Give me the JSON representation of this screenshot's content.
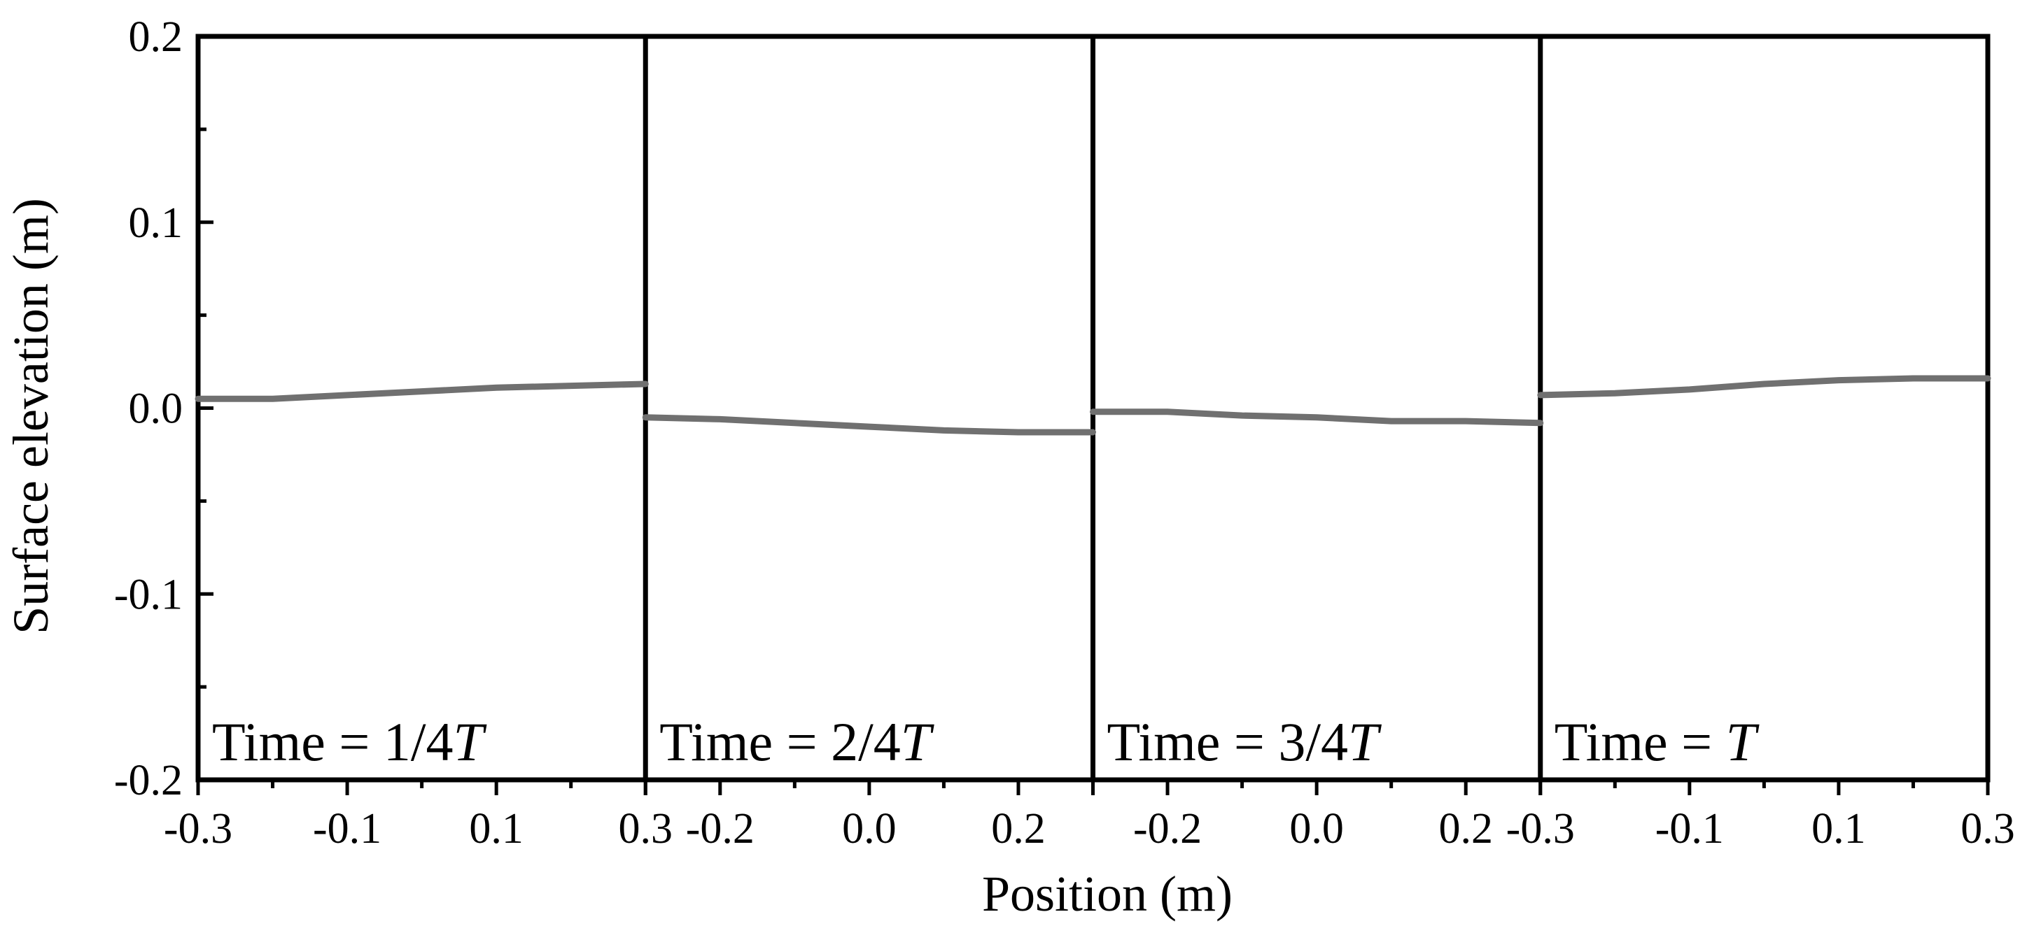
{
  "chart_data": {
    "type": "line",
    "layout": "four side-by-side panels sharing the y axis",
    "xlabel": "Position (m)",
    "ylabel": "Surface elevation (m)",
    "ylim": [
      -0.2,
      0.2
    ],
    "yticks": [
      "-0.2",
      "-0.1",
      "0.0",
      "0.1",
      "0.2"
    ],
    "grid": false,
    "line_color": "#707070",
    "axis_color": "#000000",
    "panels": [
      {
        "label_prefix": "Time = ",
        "label_value": "1/4",
        "label_italic": "T",
        "xlim": [
          -0.3,
          0.3
        ],
        "xticks": [
          "-0.3",
          "-0.1",
          "0.1",
          "0.3"
        ],
        "x": [
          -0.3,
          -0.2,
          -0.1,
          0.0,
          0.1,
          0.2,
          0.3
        ],
        "y": [
          0.005,
          0.005,
          0.007,
          0.009,
          0.011,
          0.012,
          0.013
        ]
      },
      {
        "label_prefix": "Time = ",
        "label_value": "2/4",
        "label_italic": "T",
        "xlim": [
          -0.3,
          0.3
        ],
        "xticks": [
          "-0.2",
          "0.0",
          "0.2"
        ],
        "x": [
          -0.3,
          -0.2,
          -0.1,
          0.0,
          0.1,
          0.2,
          0.3
        ],
        "y": [
          -0.005,
          -0.006,
          -0.008,
          -0.01,
          -0.012,
          -0.013,
          -0.013
        ]
      },
      {
        "label_prefix": "Time = ",
        "label_value": "3/4",
        "label_italic": "T",
        "xlim": [
          -0.3,
          0.3
        ],
        "xticks": [
          "-0.2",
          "0.0",
          "0.2"
        ],
        "x": [
          -0.3,
          -0.2,
          -0.1,
          0.0,
          0.1,
          0.2,
          0.3
        ],
        "y": [
          -0.002,
          -0.002,
          -0.004,
          -0.005,
          -0.007,
          -0.007,
          -0.008
        ]
      },
      {
        "label_prefix": "Time = ",
        "label_value": "",
        "label_italic": "T",
        "xlim": [
          -0.3,
          0.3
        ],
        "xticks": [
          "-0.3",
          "-0.1",
          "0.1",
          "0.3"
        ],
        "x": [
          -0.3,
          -0.2,
          -0.1,
          0.0,
          0.1,
          0.2,
          0.3
        ],
        "y": [
          0.007,
          0.008,
          0.01,
          0.013,
          0.015,
          0.016,
          0.016
        ]
      }
    ]
  }
}
